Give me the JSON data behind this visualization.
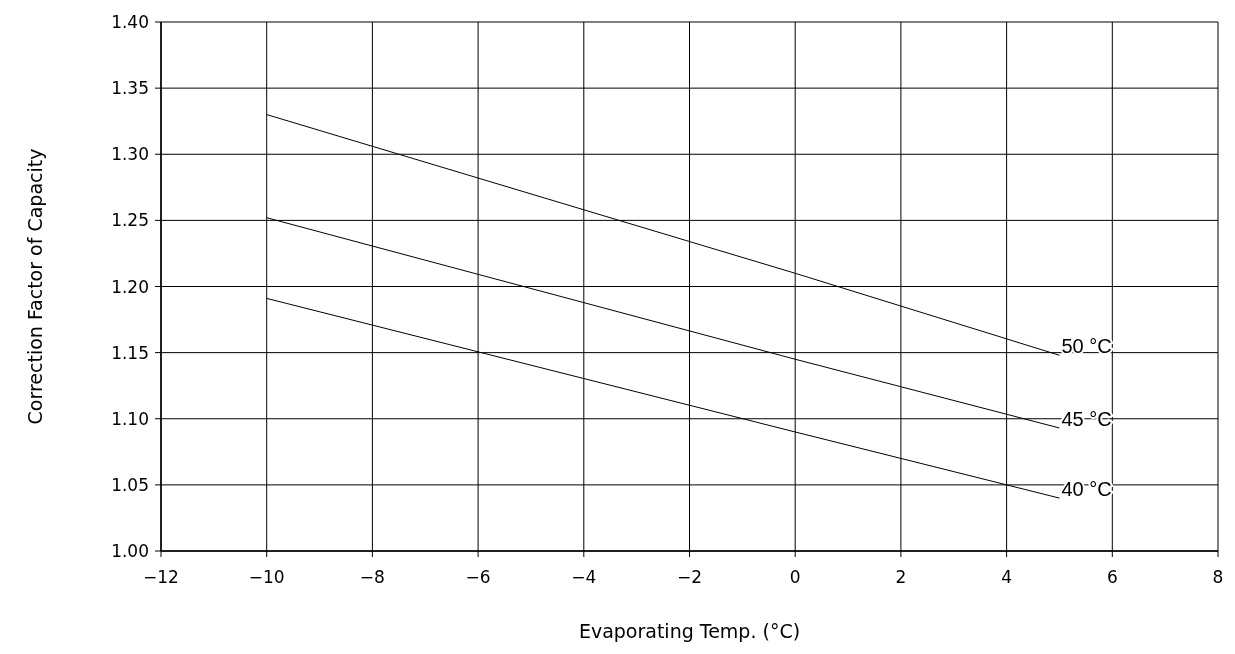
{
  "chart_data": {
    "type": "line",
    "xlabel": "Evaporating Temp. (°C)",
    "ylabel": "Correction Factor of Capacity",
    "xlim": [
      -12,
      8
    ],
    "xticks": [
      -12,
      -10,
      -8,
      -6,
      -4,
      -2,
      0,
      2,
      4,
      6,
      8
    ],
    "ylim": [
      1.0,
      1.4
    ],
    "yticks": [
      {
        "value": 1.0,
        "label": "1.00"
      },
      {
        "value": 1.05,
        "label": "1.05"
      },
      {
        "value": 1.1,
        "label": "1.10"
      },
      {
        "value": 1.15,
        "label": "1.15"
      },
      {
        "value": 1.2,
        "label": "1.20"
      },
      {
        "value": 1.25,
        "label": "1.25"
      },
      {
        "value": 1.3,
        "label": "1.30"
      },
      {
        "value": 1.35,
        "label": "1.35"
      },
      {
        "value": 1.4,
        "label": "1.40"
      }
    ],
    "grid": true,
    "marker": "none",
    "line_style": "solid",
    "x": [
      -10,
      0,
      5
    ],
    "series": [
      {
        "name": "50 °C",
        "color": "#000000",
        "values": [
          1.33,
          1.21,
          1.148
        ]
      },
      {
        "name": "45 °C",
        "color": "#000000",
        "values": [
          1.252,
          1.145,
          1.093
        ]
      },
      {
        "name": "40 °C",
        "color": "#000000",
        "values": [
          1.191,
          1.09,
          1.04
        ]
      }
    ]
  }
}
